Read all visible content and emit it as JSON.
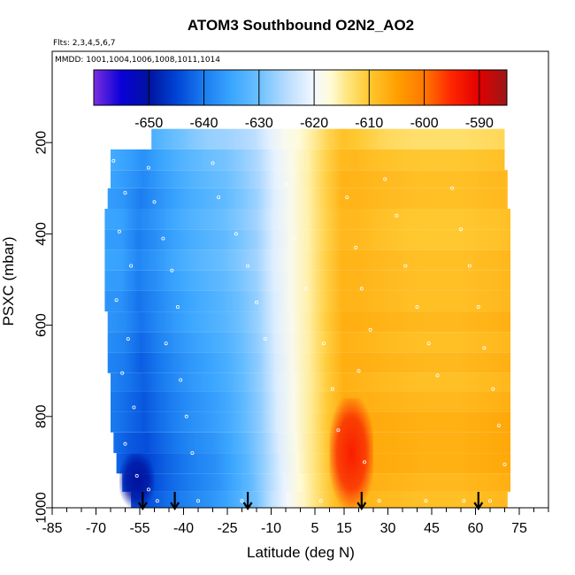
{
  "chart_data": {
    "type": "heatmap",
    "title": "ATOM3 Southbound O2N2_AO2",
    "flights_label": "Flts: 2,3,4,5,6,7",
    "mmdd_label": "MMDD: 1001,1004,1006,1008,1011,1014",
    "xlabel": "Latitude (deg N)",
    "ylabel": "PSXC (mbar)",
    "xlim": [
      -85,
      85
    ],
    "ylim": [
      1000,
      0
    ],
    "x_ticks": [
      -85,
      -70,
      -55,
      -40,
      -25,
      -10,
      5,
      15,
      30,
      45,
      60,
      75
    ],
    "x_minor_ticks": [
      -80,
      -75,
      -65,
      -60,
      -50,
      -45,
      -35,
      -30,
      -20,
      -15,
      -5,
      0,
      10,
      20,
      25,
      35,
      40,
      50,
      55,
      65,
      70,
      80,
      85
    ],
    "y_ticks": [
      200,
      400,
      600,
      800,
      1000
    ],
    "colorbar": {
      "range": [
        -660,
        -585
      ],
      "tick_values": [
        -650,
        -640,
        -630,
        -620,
        -610,
        -600,
        -590
      ],
      "tick_labels": [
        "-650",
        "-640",
        "-630",
        "-620",
        "-610",
        "-600",
        "-590"
      ],
      "stops": [
        {
          "v": -660,
          "c": "#7b2fe0"
        },
        {
          "v": -655,
          "c": "#0a00d8"
        },
        {
          "v": -650,
          "c": "#00139e"
        },
        {
          "v": -645,
          "c": "#0044d6"
        },
        {
          "v": -640,
          "c": "#1a7cf0"
        },
        {
          "v": -635,
          "c": "#3aa6ff"
        },
        {
          "v": -630,
          "c": "#6cc0ff"
        },
        {
          "v": -625,
          "c": "#b8dcff"
        },
        {
          "v": -620,
          "c": "#f4f8ff"
        },
        {
          "v": -617,
          "c": "#fffbd8"
        },
        {
          "v": -614,
          "c": "#ffe680"
        },
        {
          "v": -610,
          "c": "#ffc830"
        },
        {
          "v": -605,
          "c": "#ffa000"
        },
        {
          "v": -600,
          "c": "#ff7800"
        },
        {
          "v": -595,
          "c": "#ff2400"
        },
        {
          "v": -590,
          "c": "#e00000"
        },
        {
          "v": -585,
          "c": "#9a1818"
        }
      ]
    },
    "lat_profile": [
      {
        "lat": -62,
        "v": -636
      },
      {
        "lat": -55,
        "v": -640
      },
      {
        "lat": -45,
        "v": -636
      },
      {
        "lat": -35,
        "v": -633
      },
      {
        "lat": -25,
        "v": -631
      },
      {
        "lat": -15,
        "v": -627
      },
      {
        "lat": -8,
        "v": -621
      },
      {
        "lat": 0,
        "v": -617
      },
      {
        "lat": 5,
        "v": -614
      },
      {
        "lat": 10,
        "v": -610
      },
      {
        "lat": 15,
        "v": -607
      },
      {
        "lat": 25,
        "v": -608
      },
      {
        "lat": 40,
        "v": -609
      },
      {
        "lat": 55,
        "v": -609
      },
      {
        "lat": 70,
        "v": -608
      }
    ],
    "pressure_bands": [
      {
        "top": 170,
        "bottom": 215,
        "lat_min": -51,
        "lat_max": 70,
        "low_offset": 5,
        "high_offset": -4
      },
      {
        "top": 215,
        "bottom": 260,
        "lat_min": -65,
        "lat_max": 70,
        "low_offset": 2,
        "high_offset": -1
      },
      {
        "top": 260,
        "bottom": 300,
        "lat_min": -65,
        "lat_max": 71,
        "low_offset": 1,
        "high_offset": 0
      },
      {
        "top": 300,
        "bottom": 345,
        "lat_min": -66,
        "lat_max": 71,
        "low_offset": 0,
        "high_offset": 0
      },
      {
        "top": 345,
        "bottom": 390,
        "lat_min": -67,
        "lat_max": 72,
        "low_offset": 1,
        "high_offset": -1
      },
      {
        "top": 390,
        "bottom": 435,
        "lat_min": -67,
        "lat_max": 72,
        "low_offset": 0,
        "high_offset": -1
      },
      {
        "top": 435,
        "bottom": 480,
        "lat_min": -67,
        "lat_max": 72,
        "low_offset": 1,
        "high_offset": 0
      },
      {
        "top": 480,
        "bottom": 525,
        "lat_min": -67,
        "lat_max": 72,
        "low_offset": 0,
        "high_offset": 0
      },
      {
        "top": 525,
        "bottom": 570,
        "lat_min": -67,
        "lat_max": 72,
        "low_offset": -1,
        "high_offset": 0
      },
      {
        "top": 570,
        "bottom": 615,
        "lat_min": -66,
        "lat_max": 72,
        "low_offset": -1,
        "high_offset": 1
      },
      {
        "top": 615,
        "bottom": 660,
        "lat_min": -66,
        "lat_max": 72,
        "low_offset": -2,
        "high_offset": 0
      },
      {
        "top": 660,
        "bottom": 705,
        "lat_min": -66,
        "lat_max": 72,
        "low_offset": -3,
        "high_offset": 1
      },
      {
        "top": 705,
        "bottom": 745,
        "lat_min": -65,
        "lat_max": 72,
        "low_offset": -3,
        "high_offset": 0
      },
      {
        "top": 745,
        "bottom": 790,
        "lat_min": -65,
        "lat_max": 72,
        "low_offset": -4,
        "high_offset": 1
      },
      {
        "top": 790,
        "bottom": 835,
        "lat_min": -65,
        "lat_max": 72,
        "low_offset": -4,
        "high_offset": 2
      },
      {
        "top": 835,
        "bottom": 880,
        "lat_min": -64,
        "lat_max": 72,
        "low_offset": -5,
        "high_offset": 2
      },
      {
        "top": 880,
        "bottom": 925,
        "lat_min": -63,
        "lat_max": 72,
        "low_offset": -6,
        "high_offset": 2
      },
      {
        "top": 925,
        "bottom": 965,
        "lat_min": -61,
        "lat_max": 72,
        "low_offset": -6,
        "high_offset": 1
      },
      {
        "top": 965,
        "bottom": 1000,
        "lat_min": -58,
        "lat_max": 71,
        "low_offset": -5,
        "high_offset": 0
      }
    ],
    "hot_spot": {
      "lat_min": 10,
      "lat_max": 25,
      "p_min": 760,
      "p_max": 1000,
      "value": -594
    },
    "cold_spot": {
      "lat_min": -62,
      "lat_max": -50,
      "p_min": 880,
      "p_max": 1000,
      "value": -650
    },
    "flight_marker_lats": [
      -54,
      -43,
      -18,
      21,
      61
    ],
    "sample_points": [
      {
        "lat": -64,
        "p": 240
      },
      {
        "lat": -60,
        "p": 310
      },
      {
        "lat": -62,
        "p": 395
      },
      {
        "lat": -58,
        "p": 470
      },
      {
        "lat": -63,
        "p": 545
      },
      {
        "lat": -59,
        "p": 630
      },
      {
        "lat": -61,
        "p": 705
      },
      {
        "lat": -57,
        "p": 780
      },
      {
        "lat": -60,
        "p": 860
      },
      {
        "lat": -56,
        "p": 930
      },
      {
        "lat": -52,
        "p": 960
      },
      {
        "lat": -49,
        "p": 985
      },
      {
        "lat": -52,
        "p": 255
      },
      {
        "lat": -50,
        "p": 330
      },
      {
        "lat": -47,
        "p": 410
      },
      {
        "lat": -44,
        "p": 480
      },
      {
        "lat": -42,
        "p": 560
      },
      {
        "lat": -46,
        "p": 640
      },
      {
        "lat": -41,
        "p": 720
      },
      {
        "lat": -39,
        "p": 800
      },
      {
        "lat": -37,
        "p": 880
      },
      {
        "lat": -30,
        "p": 245
      },
      {
        "lat": -28,
        "p": 320
      },
      {
        "lat": -22,
        "p": 400
      },
      {
        "lat": -18,
        "p": 470
      },
      {
        "lat": -15,
        "p": 550
      },
      {
        "lat": -12,
        "p": 630
      },
      {
        "lat": -5,
        "p": 290
      },
      {
        "lat": -2,
        "p": 410
      },
      {
        "lat": 2,
        "p": 520
      },
      {
        "lat": 8,
        "p": 640
      },
      {
        "lat": 11,
        "p": 740
      },
      {
        "lat": 13,
        "p": 830
      },
      {
        "lat": 16,
        "p": 320
      },
      {
        "lat": 19,
        "p": 430
      },
      {
        "lat": 21,
        "p": 520
      },
      {
        "lat": 24,
        "p": 610
      },
      {
        "lat": 20,
        "p": 700
      },
      {
        "lat": 22,
        "p": 900
      },
      {
        "lat": 29,
        "p": 280
      },
      {
        "lat": 33,
        "p": 360
      },
      {
        "lat": 36,
        "p": 470
      },
      {
        "lat": 40,
        "p": 560
      },
      {
        "lat": 44,
        "p": 640
      },
      {
        "lat": 47,
        "p": 710
      },
      {
        "lat": 52,
        "p": 300
      },
      {
        "lat": 55,
        "p": 390
      },
      {
        "lat": 58,
        "p": 470
      },
      {
        "lat": 61,
        "p": 560
      },
      {
        "lat": 63,
        "p": 650
      },
      {
        "lat": 66,
        "p": 740
      },
      {
        "lat": 68,
        "p": 820
      },
      {
        "lat": 70,
        "p": 905
      },
      {
        "lat": 65,
        "p": 985
      },
      {
        "lat": 56,
        "p": 985
      },
      {
        "lat": 43,
        "p": 985
      },
      {
        "lat": 27,
        "p": 985
      },
      {
        "lat": 7,
        "p": 985
      },
      {
        "lat": -20,
        "p": 985
      },
      {
        "lat": -35,
        "p": 985
      }
    ]
  }
}
